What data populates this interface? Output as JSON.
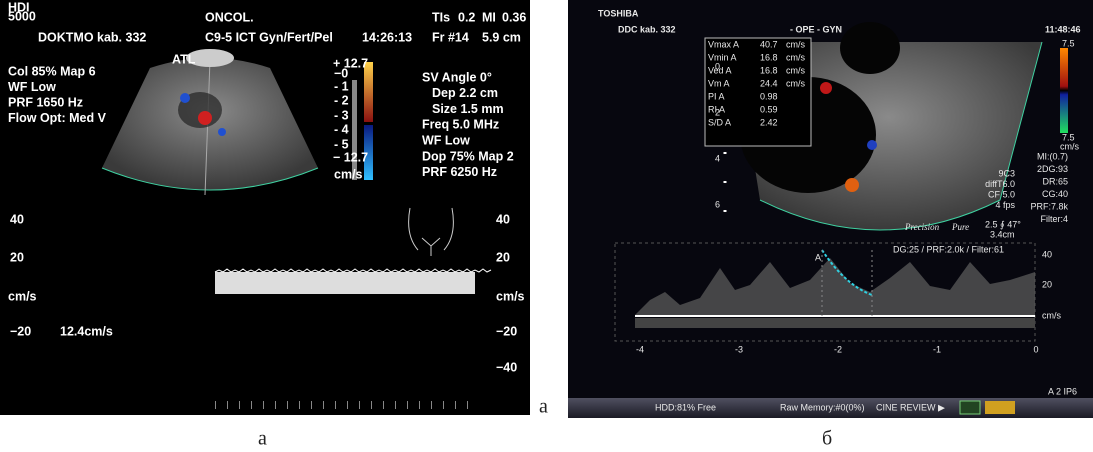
{
  "left_panel": {
    "logo_lines": [
      "HDI",
      "5000"
    ],
    "site": "DOKTMO kab. 332",
    "exam": "ONCOL.",
    "probe": "C9-5 ICT Gyn/Fert/Pel",
    "time": "14:26:13",
    "tis_label": "TIs",
    "tis_value": "0.2",
    "mi_label": "MI",
    "mi_value": "0.36",
    "frame": "Fr #14",
    "depth": "5.9 cm",
    "brand": "ATL",
    "color_settings": [
      "Col 85%  Map 6",
      "WF Low",
      "PRF 1650  Hz",
      "Flow Opt: Med V"
    ],
    "color_bar_labels": [
      "+ 12.7",
      "−0",
      "- 1",
      "- 2",
      "- 3",
      "- 4",
      "- 5",
      "− 12.7",
      "cm/s"
    ],
    "doppler_settings": [
      "SV Angle 0°",
      "Dep 2.2  cm",
      "Size 1.5  mm",
      "Freq 5.0  MHz",
      "WF Low",
      "Dop 75%  Map 2",
      "PRF 6250  Hz"
    ],
    "scale_left": [
      "40",
      "20",
      "cm/s",
      "−20"
    ],
    "scale_right": [
      "40",
      "20",
      "cm/s",
      "−20",
      "−40"
    ],
    "velocity": "12.4cm/s"
  },
  "stray_label": "а",
  "right_panel": {
    "brand": "TOSHIBA",
    "site": "DDC kab. 332",
    "exam": "- OPE -  GYN",
    "time": "11:48:46",
    "measurements": [
      [
        "Vmax A",
        "40.7",
        "cm/s"
      ],
      [
        "Vmin A",
        "16.8",
        "cm/s"
      ],
      [
        "Ved  A",
        "16.8",
        "cm/s"
      ],
      [
        "Vm  A",
        "24.4",
        "cm/s"
      ],
      [
        "PI  A",
        "0.98",
        ""
      ],
      [
        "RI  A",
        "0.59",
        ""
      ],
      [
        "S/D  A",
        "2.42",
        ""
      ]
    ],
    "depth_labels": [
      "0",
      "2",
      "4",
      "6"
    ],
    "color_bar_labels": [
      "7.5",
      "7.5",
      "cm/s"
    ],
    "settings": [
      "MI:(0.7)",
      "2DG:93",
      "DR:65",
      "CG:40",
      "PRF:7.8k",
      "Filter:4"
    ],
    "probe_settings": [
      "9C3",
      "diffT6.0",
      "CF 5.0",
      "4 fps"
    ],
    "angle": "2.5 ∮ 47°",
    "depth": "3.4cm",
    "logo_words": [
      "Precision",
      "Pure"
    ],
    "doppler_settings": "DG:25 /  PRF:2.0k  / Filter:61",
    "marker": "A",
    "scale": [
      "40",
      "20",
      "cm/s"
    ],
    "time_axis": [
      "-4",
      "-3",
      "-2",
      "-1",
      "0"
    ],
    "mode": "A 2  IP6",
    "status": [
      "HDD:81% Free",
      "Raw Memory:#0(0%)",
      "CINE REVIEW ▶"
    ]
  },
  "captions": [
    "а",
    "б"
  ]
}
